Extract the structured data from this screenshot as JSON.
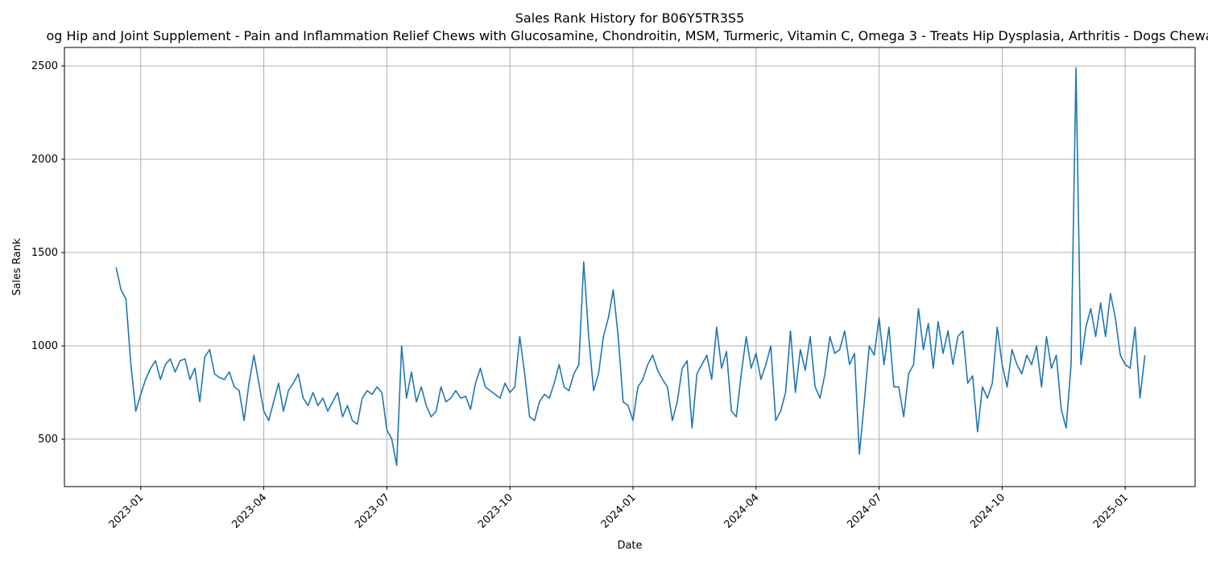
{
  "chart_data": {
    "type": "line",
    "title": "Sales Rank History for B06Y5TR3S5",
    "subtitle": "og Hip and Joint Supplement - Pain and Inflammation Relief Chews with Glucosamine, Chondroitin, MSM, Turmeric, Vitamin C, Omega 3 - Treats Hip Dysplasia, Arthritis - Dogs Chewa",
    "x_label": "Date",
    "y_label": "Sales Rank",
    "x": [
      2022.95,
      2022.96,
      2022.97,
      2022.98,
      2022.99,
      2023.0,
      2023.01,
      2023.02,
      2023.03,
      2023.04,
      2023.05,
      2023.06,
      2023.07,
      2023.08,
      2023.09,
      2023.1,
      2023.11,
      2023.12,
      2023.13,
      2023.14,
      2023.15,
      2023.16,
      2023.17,
      2023.18,
      2023.19,
      2023.2,
      2023.21,
      2023.22,
      2023.23,
      2023.24,
      2023.25,
      2023.26,
      2023.27,
      2023.28,
      2023.29,
      2023.3,
      2023.31,
      2023.32,
      2023.33,
      2023.34,
      2023.35,
      2023.36,
      2023.37,
      2023.38,
      2023.39,
      2023.4,
      2023.41,
      2023.42,
      2023.43,
      2023.44,
      2023.45,
      2023.46,
      2023.47,
      2023.48,
      2023.49,
      2023.5,
      2023.51,
      2023.52,
      2023.53,
      2023.54,
      2023.55,
      2023.56,
      2023.57,
      2023.58,
      2023.59,
      2023.6,
      2023.61,
      2023.62,
      2023.63,
      2023.64,
      2023.65,
      2023.66,
      2023.67,
      2023.68,
      2023.69,
      2023.7,
      2023.71,
      2023.72,
      2023.73,
      2023.74,
      2023.75,
      2023.76,
      2023.77,
      2023.78,
      2023.79,
      2023.8,
      2023.81,
      2023.82,
      2023.83,
      2023.84,
      2023.85,
      2023.86,
      2023.87,
      2023.88,
      2023.89,
      2023.9,
      2023.91,
      2023.92,
      2023.93,
      2023.94,
      2023.95,
      2023.96,
      2023.97,
      2023.98,
      2023.99,
      2024.0,
      2024.01,
      2024.02,
      2024.03,
      2024.04,
      2024.05,
      2024.06,
      2024.07,
      2024.08,
      2024.09,
      2024.1,
      2024.11,
      2024.12,
      2024.13,
      2024.14,
      2024.15,
      2024.16,
      2024.17,
      2024.18,
      2024.19,
      2024.2,
      2024.21,
      2024.22,
      2024.23,
      2024.24,
      2024.25,
      2024.26,
      2024.27,
      2024.28,
      2024.29,
      2024.3,
      2024.31,
      2024.32,
      2024.33,
      2024.34,
      2024.35,
      2024.36,
      2024.37,
      2024.38,
      2024.39,
      2024.4,
      2024.41,
      2024.42,
      2024.43,
      2024.44,
      2024.45,
      2024.46,
      2024.47,
      2024.48,
      2024.49,
      2024.5,
      2024.51,
      2024.52,
      2024.53,
      2024.54,
      2024.55,
      2024.56,
      2024.57,
      2024.58,
      2024.59,
      2024.6,
      2024.61,
      2024.62,
      2024.63,
      2024.64,
      2024.65,
      2024.66,
      2024.67,
      2024.68,
      2024.69,
      2024.7,
      2024.71,
      2024.72,
      2024.73,
      2024.74,
      2024.75,
      2024.76,
      2024.77,
      2024.78,
      2024.79,
      2024.8,
      2024.81,
      2024.82,
      2024.83,
      2024.84,
      2024.85,
      2024.86,
      2024.87,
      2024.88,
      2024.89,
      2024.9,
      2024.91,
      2024.92,
      2024.93,
      2024.94,
      2024.95,
      2024.96,
      2024.97,
      2024.98,
      2024.99,
      2025.0,
      2025.01,
      2025.02,
      2025.03,
      2025.04
    ],
    "series": [
      {
        "name": "Sales Rank",
        "color": "#1f77b4",
        "values": [
          1420,
          1300,
          1250,
          900,
          650,
          740,
          820,
          880,
          920,
          820,
          900,
          930,
          860,
          920,
          930,
          820,
          880,
          700,
          940,
          980,
          850,
          830,
          820,
          860,
          780,
          760,
          600,
          800,
          950,
          800,
          650,
          600,
          700,
          800,
          650,
          760,
          800,
          850,
          720,
          680,
          750,
          680,
          720,
          650,
          700,
          750,
          620,
          680,
          600,
          580,
          720,
          760,
          740,
          780,
          750,
          550,
          500,
          360,
          1000,
          720,
          860,
          700,
          780,
          680,
          620,
          650,
          780,
          700,
          720,
          760,
          720,
          730,
          660,
          800,
          880,
          780,
          760,
          740,
          720,
          800,
          750,
          780,
          1050,
          850,
          620,
          600,
          700,
          740,
          720,
          800,
          900,
          780,
          760,
          850,
          900,
          1450,
          1050,
          760,
          850,
          1050,
          1150,
          1300,
          1050,
          700,
          680,
          600,
          780,
          820,
          900,
          950,
          870,
          820,
          780,
          600,
          700,
          880,
          920,
          560,
          850,
          900,
          950,
          820,
          1100,
          880,
          970,
          650,
          620,
          850,
          1050,
          880,
          960,
          820,
          900,
          1000,
          600,
          650,
          750,
          1080,
          750,
          980,
          870,
          1050,
          780,
          720,
          850,
          1050,
          960,
          980,
          1080,
          900,
          960,
          420,
          700,
          1000,
          950,
          1150,
          900,
          1100,
          780,
          780,
          620,
          850,
          900,
          1200,
          980,
          1120,
          880,
          1130,
          960,
          1080,
          900,
          1050,
          1080,
          800,
          840,
          540,
          780,
          720,
          800,
          1100,
          900,
          780,
          980,
          900,
          850,
          950,
          900,
          1000,
          780,
          1050,
          880,
          950,
          660,
          560,
          900,
          2490,
          900,
          1100,
          1200,
          1050,
          1230,
          1050,
          1280,
          1150,
          950,
          900,
          880,
          1100,
          720,
          950
        ]
      }
    ],
    "xlim": [
      2022.845,
      2025.142
    ],
    "xticks": [
      {
        "value": 2023.0,
        "label": "2023-01"
      },
      {
        "value": 2023.25,
        "label": "2023-04"
      },
      {
        "value": 2023.5,
        "label": "2023-07"
      },
      {
        "value": 2023.75,
        "label": "2023-10"
      },
      {
        "value": 2024.0,
        "label": "2024-01"
      },
      {
        "value": 2024.25,
        "label": "2024-04"
      },
      {
        "value": 2024.5,
        "label": "2024-07"
      },
      {
        "value": 2024.75,
        "label": "2024-10"
      },
      {
        "value": 2025.0,
        "label": "2025-01"
      }
    ],
    "ylim": [
      246,
      2599
    ],
    "yticks": [
      500,
      1000,
      1500,
      2000,
      2500
    ],
    "grid": true
  }
}
